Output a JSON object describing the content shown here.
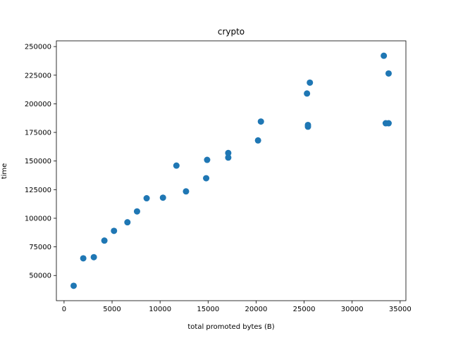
{
  "chart_data": {
    "type": "scatter",
    "title": "crypto",
    "xlabel": "total promoted bytes (B)",
    "ylabel": "time",
    "xlim": [
      -800,
      35600
    ],
    "ylim": [
      28000,
      255000
    ],
    "xticks": [
      0,
      5000,
      10000,
      15000,
      20000,
      25000,
      30000,
      35000
    ],
    "yticks": [
      50000,
      75000,
      100000,
      125000,
      150000,
      175000,
      200000,
      225000,
      250000
    ],
    "grid": false,
    "color": "#1f77b4",
    "points": [
      {
        "x": 1000,
        "y": 41000
      },
      {
        "x": 2000,
        "y": 65000
      },
      {
        "x": 3100,
        "y": 66000
      },
      {
        "x": 4200,
        "y": 80500
      },
      {
        "x": 5200,
        "y": 89000
      },
      {
        "x": 6600,
        "y": 96500
      },
      {
        "x": 7600,
        "y": 106000
      },
      {
        "x": 8600,
        "y": 117500
      },
      {
        "x": 10300,
        "y": 118000
      },
      {
        "x": 11700,
        "y": 146000
      },
      {
        "x": 12700,
        "y": 123500
      },
      {
        "x": 14800,
        "y": 135000
      },
      {
        "x": 14900,
        "y": 151000
      },
      {
        "x": 17100,
        "y": 153000
      },
      {
        "x": 17100,
        "y": 157000
      },
      {
        "x": 20200,
        "y": 168000
      },
      {
        "x": 20500,
        "y": 184500
      },
      {
        "x": 25300,
        "y": 209000
      },
      {
        "x": 25600,
        "y": 218500
      },
      {
        "x": 25400,
        "y": 180000
      },
      {
        "x": 25400,
        "y": 181500
      },
      {
        "x": 33300,
        "y": 242000
      },
      {
        "x": 33800,
        "y": 226500
      },
      {
        "x": 33500,
        "y": 183000
      },
      {
        "x": 33800,
        "y": 183000
      }
    ]
  }
}
